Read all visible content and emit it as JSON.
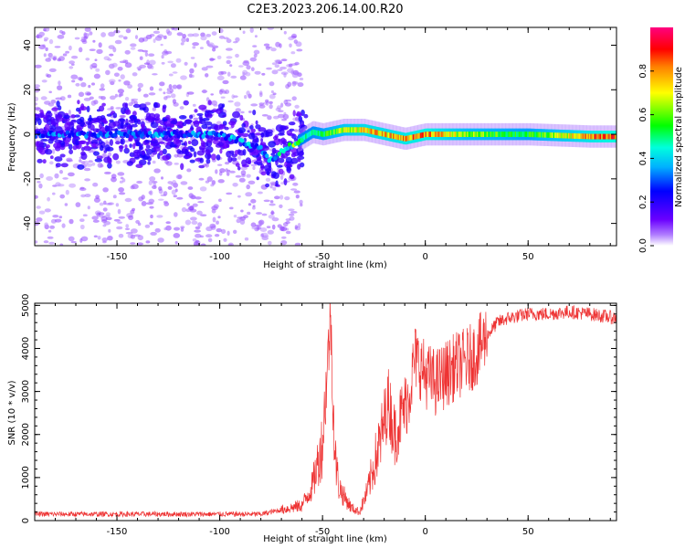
{
  "figure": {
    "title": "C2E3.2023.206.14.00.R20"
  },
  "chart_data": [
    {
      "type": "heatmap",
      "title": "C2E3.2023.206.14.00.R20",
      "xlabel": "Height of straight line (km)",
      "ylabel": "Frequency (Hz)",
      "xlim": [
        -190,
        93
      ],
      "ylim": [
        -50,
        48
      ],
      "xticks": [
        -150,
        -100,
        -50,
        0,
        50
      ],
      "yticks": [
        -40,
        -20,
        0,
        20,
        40
      ],
      "grid": false,
      "colorbar": {
        "label": "Normalized spectral amplitude",
        "range": [
          0,
          1
        ],
        "ticks": [
          0.0,
          0.2,
          0.4,
          0.6,
          0.8
        ],
        "colormap": [
          "#ffffff",
          "#6a00ff",
          "#0000ff",
          "#00ffff",
          "#00ff00",
          "#ffff00",
          "#ff0000",
          "#ff00aa"
        ]
      },
      "ridge": {
        "x": [
          -190,
          -150,
          -100,
          -80,
          -76,
          -70,
          -62,
          -55,
          -50,
          -40,
          -30,
          -20,
          -10,
          0,
          20,
          50,
          80,
          93
        ],
        "y": [
          0,
          0,
          0,
          -6,
          -12,
          -8,
          -3,
          1,
          0,
          2,
          2,
          0,
          -2,
          0,
          0,
          0,
          -1,
          -1
        ],
        "amplitude": [
          0.25,
          0.25,
          0.3,
          0.3,
          0.35,
          0.4,
          0.5,
          0.55,
          0.6,
          0.75,
          0.85,
          0.85,
          0.9,
          0.95,
          0.7,
          0.6,
          0.9,
          1.0
        ]
      }
    },
    {
      "type": "line",
      "title": "",
      "xlabel": "Height of straight line (km)",
      "ylabel": "SNR (10 * v/v)",
      "xlim": [
        -190,
        93
      ],
      "ylim": [
        0,
        5050
      ],
      "xticks": [
        -150,
        -100,
        -50,
        0,
        50
      ],
      "yticks": [
        0,
        1000,
        2000,
        3000,
        4000,
        5000
      ],
      "grid": false,
      "series": [
        {
          "color": "#ee3333",
          "x": [
            -190,
            -80,
            -70,
            -60,
            -55,
            -50,
            -48,
            -46,
            -45,
            -44,
            -42,
            -40,
            -36,
            -32,
            -28,
            -25,
            -22,
            -20,
            -18,
            -15,
            -12,
            -8,
            -5,
            0,
            5,
            10,
            15,
            20,
            25,
            30,
            35,
            40,
            50,
            60,
            70,
            80,
            93
          ],
          "y": [
            150,
            150,
            250,
            350,
            800,
            1800,
            3300,
            4800,
            3000,
            1500,
            800,
            600,
            300,
            200,
            700,
            1300,
            1800,
            2300,
            2800,
            2000,
            2400,
            2900,
            3800,
            3400,
            3200,
            3400,
            3600,
            3700,
            3900,
            4300,
            4600,
            4700,
            4800,
            4800,
            4850,
            4800,
            4700
          ]
        }
      ]
    }
  ]
}
